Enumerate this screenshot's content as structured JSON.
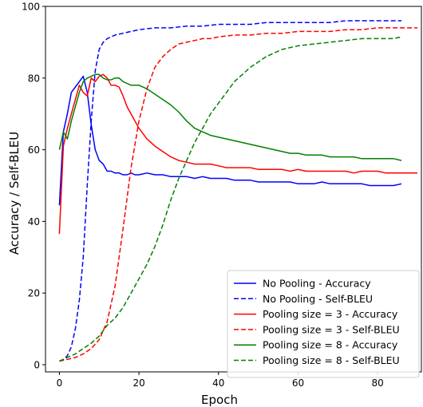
{
  "chart_data": {
    "type": "line",
    "xlabel": "Epoch",
    "ylabel": "Accuracy / Self-BLEU",
    "xlim": [
      -3.5,
      91
    ],
    "ylim": [
      -2,
      100
    ],
    "xticks": [
      0,
      20,
      40,
      60,
      80
    ],
    "yticks": [
      0,
      20,
      40,
      60,
      80,
      100
    ],
    "grid": false,
    "legend_position": "lower-right",
    "series": [
      {
        "name": "No Pooling - Accuracy",
        "color": "#0000ff",
        "dash": "solid",
        "x": [
          0,
          1,
          2,
          3,
          4,
          5,
          6,
          7,
          8,
          9,
          10,
          11,
          12,
          13,
          14,
          15,
          16,
          17,
          18,
          19,
          20,
          22,
          24,
          26,
          28,
          30,
          32,
          34,
          36,
          38,
          40,
          42,
          44,
          46,
          48,
          50,
          52,
          54,
          56,
          58,
          60,
          62,
          64,
          66,
          68,
          70,
          72,
          74,
          76,
          78,
          80,
          82,
          84,
          86
        ],
        "y": [
          44.5,
          65,
          70,
          76,
          77.5,
          79,
          80.5,
          76,
          67,
          60,
          57,
          56,
          54,
          54,
          53.5,
          53.5,
          53,
          53,
          53.5,
          53,
          53,
          53.5,
          53,
          53,
          52.5,
          52.5,
          52.5,
          52,
          52.5,
          52,
          52,
          52,
          51.5,
          51.5,
          51.5,
          51,
          51,
          51,
          51,
          51,
          50.5,
          50.5,
          50.5,
          51,
          50.5,
          50.5,
          50.5,
          50.5,
          50.5,
          50,
          50,
          50,
          50,
          50.5
        ]
      },
      {
        "name": "No Pooling - Self-BLEU",
        "color": "#0000ff",
        "dash": "dashed",
        "x": [
          0,
          1,
          2,
          3,
          4,
          5,
          6,
          7,
          8,
          9,
          10,
          11,
          12,
          13,
          14,
          16,
          18,
          20,
          24,
          28,
          32,
          36,
          40,
          44,
          48,
          52,
          56,
          60,
          64,
          68,
          72,
          76,
          80,
          84,
          86
        ],
        "y": [
          1,
          1.5,
          2.5,
          5,
          10,
          18,
          30,
          50,
          68,
          82,
          88,
          90,
          91,
          91.5,
          92,
          92.5,
          93,
          93.5,
          94,
          94,
          94.5,
          94.5,
          95,
          95,
          95,
          95.5,
          95.5,
          95.5,
          95.5,
          95.5,
          96,
          96,
          96,
          96,
          96
        ]
      },
      {
        "name": "Pooling size = 3 - Accuracy",
        "color": "#ff0000",
        "dash": "solid",
        "x": [
          0,
          1,
          2,
          3,
          4,
          5,
          6,
          7,
          8,
          9,
          10,
          11,
          12,
          13,
          14,
          15,
          16,
          17,
          18,
          19,
          20,
          22,
          24,
          26,
          28,
          30,
          32,
          34,
          36,
          38,
          40,
          42,
          44,
          46,
          48,
          50,
          52,
          54,
          56,
          58,
          60,
          62,
          64,
          66,
          68,
          70,
          72,
          74,
          76,
          78,
          80,
          82,
          84,
          86,
          88,
          90
        ],
        "y": [
          36.5,
          61,
          66,
          70,
          74,
          78,
          76,
          75,
          80,
          79,
          80.5,
          81,
          80,
          78,
          78,
          77.5,
          75,
          72,
          70,
          68,
          66,
          63,
          61,
          59.5,
          58,
          57,
          56.5,
          56,
          56,
          56,
          55.5,
          55,
          55,
          55,
          55,
          54.5,
          54.5,
          54.5,
          54.5,
          54,
          54.5,
          54,
          54,
          54,
          54,
          54,
          54,
          53.5,
          54,
          54,
          54,
          53.5,
          53.5,
          53.5,
          53.5,
          53.5
        ]
      },
      {
        "name": "Pooling size = 3 - Self-BLEU",
        "color": "#ff0000",
        "dash": "dashed",
        "x": [
          0,
          2,
          4,
          6,
          8,
          10,
          12,
          14,
          16,
          18,
          20,
          22,
          24,
          26,
          28,
          30,
          32,
          34,
          36,
          38,
          40,
          44,
          48,
          52,
          56,
          60,
          64,
          68,
          72,
          76,
          80,
          84,
          88,
          90
        ],
        "y": [
          1,
          1.5,
          2,
          3,
          4.5,
          7,
          12,
          22,
          38,
          55,
          68,
          77,
          83,
          86,
          88,
          89.5,
          90,
          90.5,
          91,
          91,
          91.5,
          92,
          92,
          92.5,
          92.5,
          93,
          93,
          93,
          93.5,
          93.5,
          94,
          94,
          94,
          94
        ]
      },
      {
        "name": "Pooling size = 8 - Accuracy",
        "color": "#008000",
        "dash": "solid",
        "x": [
          0,
          1,
          2,
          3,
          4,
          5,
          6,
          7,
          8,
          9,
          10,
          11,
          12,
          13,
          14,
          15,
          16,
          17,
          18,
          19,
          20,
          22,
          24,
          26,
          28,
          30,
          32,
          34,
          36,
          38,
          40,
          42,
          44,
          46,
          48,
          50,
          52,
          54,
          56,
          58,
          60,
          62,
          64,
          66,
          68,
          70,
          72,
          74,
          76,
          78,
          80,
          82,
          84,
          86
        ],
        "y": [
          60,
          65,
          63,
          68,
          72,
          76,
          79,
          80,
          80.5,
          81,
          81,
          80,
          79.5,
          79.5,
          80,
          80,
          79,
          78.5,
          78,
          78,
          78,
          77,
          75.5,
          74,
          72.5,
          70.5,
          68,
          66,
          65,
          64,
          63.5,
          63,
          62.5,
          62,
          61.5,
          61,
          60.5,
          60,
          59.5,
          59,
          59,
          58.5,
          58.5,
          58.5,
          58,
          58,
          58,
          58,
          57.5,
          57.5,
          57.5,
          57.5,
          57.5,
          57
        ]
      },
      {
        "name": "Pooling size = 8 - Self-BLEU",
        "color": "#008000",
        "dash": "dashed",
        "x": [
          0,
          2,
          4,
          6,
          8,
          10,
          12,
          14,
          16,
          18,
          20,
          22,
          24,
          26,
          28,
          30,
          32,
          34,
          36,
          38,
          40,
          42,
          44,
          46,
          48,
          50,
          52,
          54,
          56,
          58,
          60,
          64,
          68,
          72,
          76,
          80,
          84,
          86
        ],
        "y": [
          1,
          2,
          3,
          4.5,
          6,
          8,
          11,
          13,
          16,
          20,
          24,
          28,
          33,
          39,
          46,
          52,
          57,
          62,
          66,
          70,
          73,
          76,
          79,
          81,
          83,
          84.5,
          86,
          87,
          88,
          88.5,
          89,
          89.5,
          90,
          90.5,
          91,
          91,
          91,
          91.5
        ]
      }
    ]
  }
}
